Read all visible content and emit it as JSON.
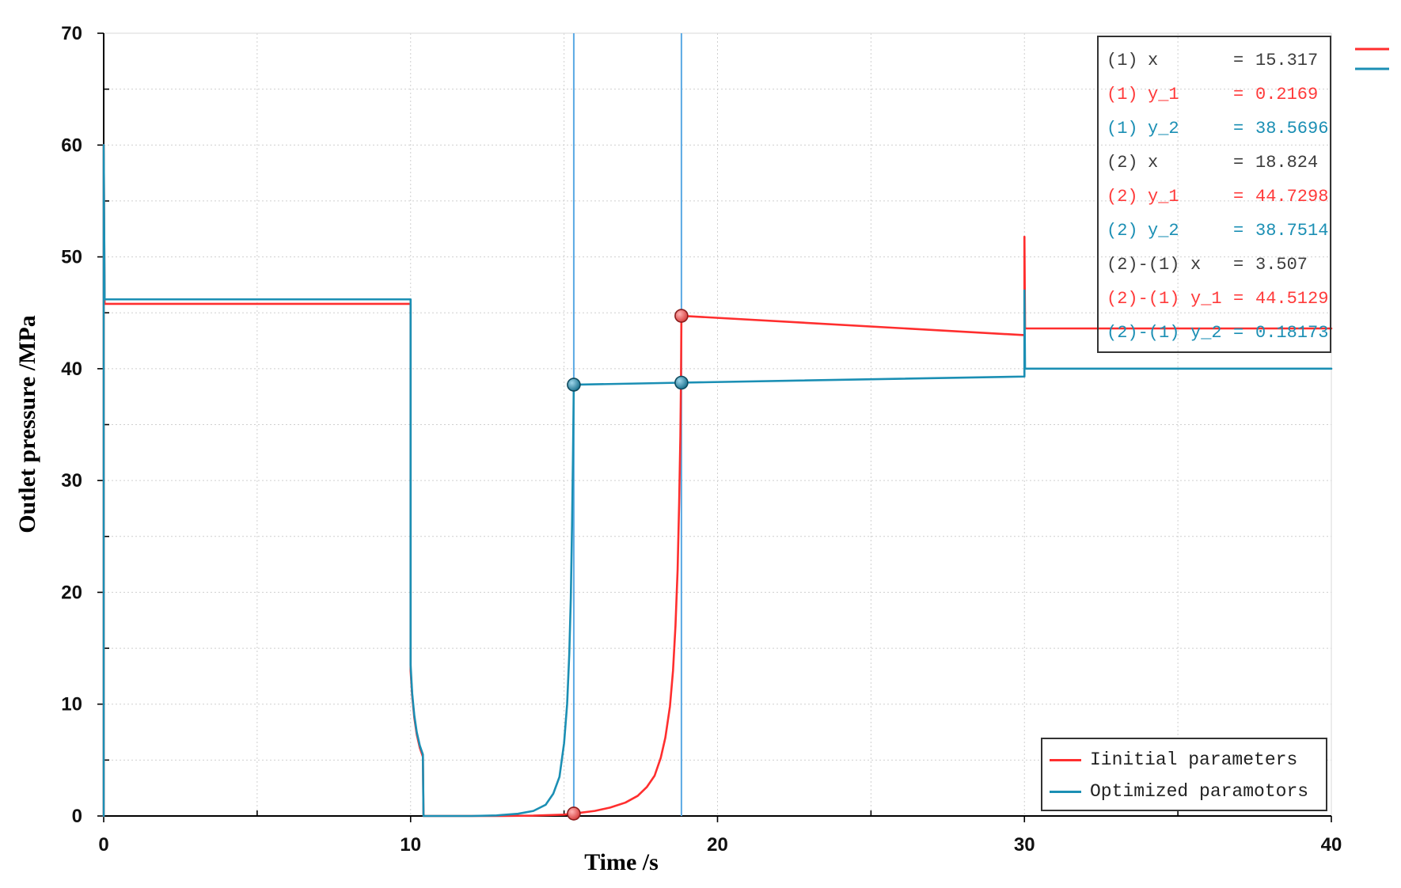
{
  "chart_data": {
    "type": "line",
    "xlabel": "Time /s",
    "ylabel": "Outlet pressure /MPa",
    "xlim": [
      0,
      40
    ],
    "ylim": [
      0,
      70
    ],
    "xticks": [
      0,
      10,
      20,
      30,
      40
    ],
    "yticks": [
      0,
      10,
      20,
      30,
      40,
      50,
      60,
      70
    ],
    "grid": true,
    "legend_position": "bottom-right",
    "series": [
      {
        "name": "Iinitial parameters",
        "color": "#ff2e2e",
        "points": [
          [
            0,
            0
          ],
          [
            0,
            60
          ],
          [
            0.03,
            45.8
          ],
          [
            10,
            45.8
          ],
          [
            10,
            13
          ],
          [
            10.05,
            10.8
          ],
          [
            10.12,
            8.8
          ],
          [
            10.2,
            7.3
          ],
          [
            10.3,
            6.1
          ],
          [
            10.4,
            5.3
          ],
          [
            10.42,
            0
          ],
          [
            13,
            0
          ],
          [
            14,
            0.03
          ],
          [
            15,
            0.12
          ],
          [
            15.317,
            0.2169
          ],
          [
            16,
            0.45
          ],
          [
            16.5,
            0.75
          ],
          [
            17,
            1.2
          ],
          [
            17.4,
            1.8
          ],
          [
            17.7,
            2.6
          ],
          [
            17.95,
            3.6
          ],
          [
            18.15,
            5.2
          ],
          [
            18.3,
            7
          ],
          [
            18.45,
            9.8
          ],
          [
            18.55,
            13
          ],
          [
            18.63,
            17
          ],
          [
            18.7,
            22
          ],
          [
            18.75,
            28
          ],
          [
            18.79,
            34
          ],
          [
            18.81,
            39
          ],
          [
            18.824,
            44.7298
          ],
          [
            30,
            43.0
          ],
          [
            30,
            51.8
          ],
          [
            30.02,
            43.6
          ],
          [
            40,
            43.6
          ]
        ]
      },
      {
        "name": "Optimized paramotors",
        "color": "#1b8fb4",
        "points": [
          [
            0,
            0
          ],
          [
            0,
            60
          ],
          [
            0.03,
            46.2
          ],
          [
            10,
            46.2
          ],
          [
            10,
            13.5
          ],
          [
            10.05,
            11
          ],
          [
            10.12,
            9
          ],
          [
            10.2,
            7.5
          ],
          [
            10.3,
            6.3
          ],
          [
            10.4,
            5.5
          ],
          [
            10.42,
            0
          ],
          [
            12,
            0
          ],
          [
            12.8,
            0.05
          ],
          [
            13.5,
            0.2
          ],
          [
            14,
            0.45
          ],
          [
            14.4,
            1.0
          ],
          [
            14.65,
            2.0
          ],
          [
            14.85,
            3.5
          ],
          [
            15.0,
            6.5
          ],
          [
            15.1,
            10
          ],
          [
            15.17,
            14.5
          ],
          [
            15.22,
            19.5
          ],
          [
            15.26,
            26
          ],
          [
            15.29,
            32
          ],
          [
            15.305,
            35.5
          ],
          [
            15.317,
            38.5696
          ],
          [
            18.824,
            38.7514
          ],
          [
            30,
            39.3
          ],
          [
            30,
            47.0
          ],
          [
            30.02,
            40.0
          ],
          [
            40,
            40.0
          ]
        ]
      }
    ],
    "cursors": [
      {
        "x": 15.317
      },
      {
        "x": 18.824
      }
    ],
    "cursor_color": "#5ba9e4",
    "markers": [
      {
        "series": 0,
        "x": 15.317,
        "y": 0.2169
      },
      {
        "series": 1,
        "x": 15.317,
        "y": 38.5696
      },
      {
        "series": 0,
        "x": 18.824,
        "y": 44.7298
      },
      {
        "series": 1,
        "x": 18.824,
        "y": 38.7514
      }
    ]
  },
  "readout": {
    "eq": "=",
    "rows": [
      {
        "id": "(1)",
        "var": "x",
        "value": "15.317",
        "color": "#3c3c3c"
      },
      {
        "id": "(1)",
        "var": "y_1",
        "value": "0.2169",
        "color": "#ff3a3a"
      },
      {
        "id": "(1)",
        "var": "y_2",
        "value": "38.5696",
        "color": "#1b8fb4"
      },
      {
        "id": "(2)",
        "var": "x",
        "value": "18.824",
        "color": "#3c3c3c"
      },
      {
        "id": "(2)",
        "var": "y_1",
        "value": "44.7298",
        "color": "#ff3a3a"
      },
      {
        "id": "(2)",
        "var": "y_2",
        "value": "38.7514",
        "color": "#1b8fb4"
      },
      {
        "id": "(2)-(1)",
        "var": "x",
        "value": "3.507",
        "color": "#3c3c3c"
      },
      {
        "id": "(2)-(1)",
        "var": "y_1",
        "value": "44.5129",
        "color": "#ff3a3a"
      },
      {
        "id": "(2)-(1)",
        "var": "y_2",
        "value": "0.18173",
        "color": "#1b8fb4"
      }
    ]
  }
}
